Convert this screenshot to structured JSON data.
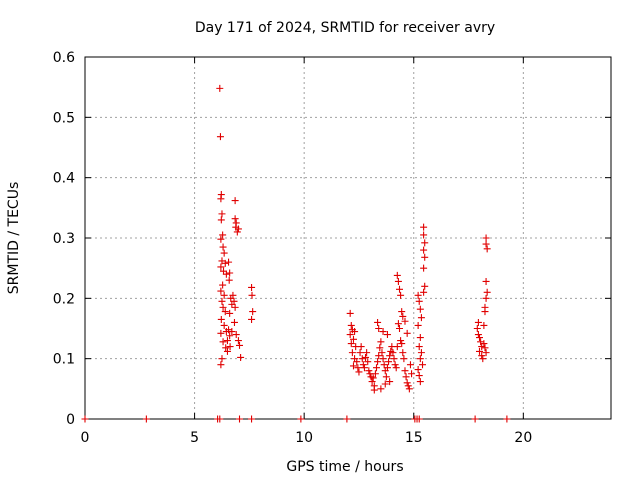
{
  "chart_data": {
    "type": "scatter",
    "title": "Day 171 of 2024, SRMTID for receiver avry",
    "xlabel": "GPS time / hours",
    "ylabel": "SRMTID / TECUs",
    "xlim": [
      0,
      24
    ],
    "ylim": [
      0,
      0.6
    ],
    "xticks": [
      0,
      5,
      10,
      15,
      20
    ],
    "xtick_labels": [
      "0",
      "5",
      "10",
      "15",
      "20"
    ],
    "yticks": [
      0,
      0.1,
      0.2,
      0.3,
      0.4,
      0.5,
      0.6
    ],
    "ytick_labels": [
      "0",
      "0.1",
      "0.2",
      "0.3",
      "0.4",
      "0.5",
      "0.6"
    ],
    "grid": true,
    "marker": "plus",
    "color": "#e00000",
    "series": [
      {
        "name": "SRMTID",
        "points": [
          [
            0.0,
            0.0
          ],
          [
            2.8,
            0.0
          ],
          [
            6.05,
            0.0
          ],
          [
            6.15,
            0.0
          ],
          [
            7.05,
            0.0
          ],
          [
            7.6,
            0.0
          ],
          [
            9.85,
            0.0
          ],
          [
            11.95,
            0.0
          ],
          [
            15.05,
            0.0
          ],
          [
            15.15,
            0.0
          ],
          [
            15.25,
            0.0
          ],
          [
            17.8,
            0.0
          ],
          [
            19.25,
            0.0
          ],
          [
            6.15,
            0.548
          ],
          [
            6.18,
            0.468
          ],
          [
            6.22,
            0.372
          ],
          [
            6.2,
            0.365
          ],
          [
            6.25,
            0.34
          ],
          [
            6.22,
            0.33
          ],
          [
            6.28,
            0.305
          ],
          [
            6.2,
            0.298
          ],
          [
            6.3,
            0.285
          ],
          [
            6.35,
            0.275
          ],
          [
            6.25,
            0.262
          ],
          [
            6.2,
            0.252
          ],
          [
            6.32,
            0.245
          ],
          [
            6.4,
            0.258
          ],
          [
            6.45,
            0.24
          ],
          [
            6.28,
            0.222
          ],
          [
            6.2,
            0.212
          ],
          [
            6.35,
            0.205
          ],
          [
            6.25,
            0.195
          ],
          [
            6.3,
            0.185
          ],
          [
            6.4,
            0.178
          ],
          [
            6.22,
            0.165
          ],
          [
            6.35,
            0.155
          ],
          [
            6.45,
            0.145
          ],
          [
            6.2,
            0.142
          ],
          [
            6.3,
            0.128
          ],
          [
            6.42,
            0.118
          ],
          [
            6.5,
            0.112
          ],
          [
            6.25,
            0.1
          ],
          [
            6.2,
            0.09
          ],
          [
            6.55,
            0.26
          ],
          [
            6.6,
            0.242
          ],
          [
            6.58,
            0.23
          ],
          [
            6.65,
            0.2
          ],
          [
            6.7,
            0.19
          ],
          [
            6.6,
            0.175
          ],
          [
            6.55,
            0.148
          ],
          [
            6.6,
            0.138
          ],
          [
            6.5,
            0.13
          ],
          [
            6.62,
            0.12
          ],
          [
            6.7,
            0.145
          ],
          [
            6.85,
            0.362
          ],
          [
            6.85,
            0.332
          ],
          [
            6.9,
            0.325
          ],
          [
            6.88,
            0.318
          ],
          [
            6.95,
            0.31
          ],
          [
            7.0,
            0.315
          ],
          [
            6.8,
            0.195
          ],
          [
            6.85,
            0.185
          ],
          [
            6.82,
            0.16
          ],
          [
            6.9,
            0.14
          ],
          [
            7.0,
            0.13
          ],
          [
            7.05,
            0.122
          ],
          [
            7.1,
            0.102
          ],
          [
            6.75,
            0.205
          ],
          [
            7.6,
            0.218
          ],
          [
            7.62,
            0.205
          ],
          [
            7.65,
            0.178
          ],
          [
            7.6,
            0.165
          ],
          [
            12.1,
            0.175
          ],
          [
            12.15,
            0.155
          ],
          [
            12.2,
            0.148
          ],
          [
            12.1,
            0.14
          ],
          [
            12.25,
            0.132
          ],
          [
            12.3,
            0.145
          ],
          [
            12.15,
            0.125
          ],
          [
            12.35,
            0.12
          ],
          [
            12.2,
            0.11
          ],
          [
            12.3,
            0.1
          ],
          [
            12.4,
            0.095
          ],
          [
            12.25,
            0.088
          ],
          [
            12.45,
            0.085
          ],
          [
            12.5,
            0.078
          ],
          [
            12.55,
            0.11
          ],
          [
            12.6,
            0.12
          ],
          [
            12.65,
            0.1
          ],
          [
            12.7,
            0.09
          ],
          [
            12.75,
            0.085
          ],
          [
            12.8,
            0.102
          ],
          [
            12.85,
            0.11
          ],
          [
            12.9,
            0.095
          ],
          [
            12.95,
            0.08
          ],
          [
            13.0,
            0.075
          ],
          [
            13.05,
            0.07
          ],
          [
            13.1,
            0.062
          ],
          [
            13.15,
            0.068
          ],
          [
            13.2,
            0.055
          ],
          [
            13.25,
            0.075
          ],
          [
            13.3,
            0.085
          ],
          [
            13.35,
            0.095
          ],
          [
            13.4,
            0.105
          ],
          [
            13.45,
            0.118
          ],
          [
            13.5,
            0.128
          ],
          [
            13.55,
            0.11
          ],
          [
            13.6,
            0.1
          ],
          [
            13.65,
            0.09
          ],
          [
            13.7,
            0.08
          ],
          [
            13.75,
            0.07
          ],
          [
            13.8,
            0.085
          ],
          [
            13.85,
            0.095
          ],
          [
            13.9,
            0.105
          ],
          [
            13.95,
            0.112
          ],
          [
            13.35,
            0.16
          ],
          [
            13.4,
            0.15
          ],
          [
            13.6,
            0.145
          ],
          [
            13.8,
            0.14
          ],
          [
            13.5,
            0.05
          ],
          [
            13.7,
            0.058
          ],
          [
            13.9,
            0.062
          ],
          [
            13.2,
            0.048
          ],
          [
            14.0,
            0.12
          ],
          [
            14.05,
            0.11
          ],
          [
            14.1,
            0.1
          ],
          [
            14.15,
            0.09
          ],
          [
            14.2,
            0.085
          ],
          [
            14.25,
            0.12
          ],
          [
            14.3,
            0.158
          ],
          [
            14.35,
            0.15
          ],
          [
            14.4,
            0.13
          ],
          [
            14.45,
            0.125
          ],
          [
            14.5,
            0.11
          ],
          [
            14.55,
            0.1
          ],
          [
            14.6,
            0.08
          ],
          [
            14.65,
            0.07
          ],
          [
            14.7,
            0.06
          ],
          [
            14.75,
            0.055
          ],
          [
            14.8,
            0.05
          ],
          [
            14.85,
            0.09
          ],
          [
            14.9,
            0.075
          ],
          [
            14.25,
            0.238
          ],
          [
            14.3,
            0.228
          ],
          [
            14.35,
            0.215
          ],
          [
            14.4,
            0.205
          ],
          [
            14.45,
            0.178
          ],
          [
            14.5,
            0.17
          ],
          [
            14.6,
            0.162
          ],
          [
            14.7,
            0.142
          ],
          [
            15.2,
            0.205
          ],
          [
            15.25,
            0.195
          ],
          [
            15.3,
            0.182
          ],
          [
            15.35,
            0.168
          ],
          [
            15.2,
            0.155
          ],
          [
            15.3,
            0.135
          ],
          [
            15.25,
            0.12
          ],
          [
            15.35,
            0.11
          ],
          [
            15.3,
            0.1
          ],
          [
            15.4,
            0.09
          ],
          [
            15.2,
            0.082
          ],
          [
            15.25,
            0.072
          ],
          [
            15.3,
            0.062
          ],
          [
            15.45,
            0.318
          ],
          [
            15.45,
            0.305
          ],
          [
            15.5,
            0.292
          ],
          [
            15.45,
            0.28
          ],
          [
            15.5,
            0.268
          ],
          [
            15.45,
            0.25
          ],
          [
            15.5,
            0.22
          ],
          [
            15.45,
            0.21
          ],
          [
            17.9,
            0.15
          ],
          [
            17.95,
            0.14
          ],
          [
            18.0,
            0.135
          ],
          [
            18.05,
            0.128
          ],
          [
            18.1,
            0.12
          ],
          [
            18.0,
            0.112
          ],
          [
            18.1,
            0.105
          ],
          [
            18.15,
            0.1
          ],
          [
            17.95,
            0.16
          ],
          [
            18.2,
            0.125
          ],
          [
            18.25,
            0.118
          ],
          [
            18.3,
            0.11
          ],
          [
            18.3,
            0.3
          ],
          [
            18.3,
            0.29
          ],
          [
            18.35,
            0.282
          ],
          [
            18.3,
            0.228
          ],
          [
            18.35,
            0.21
          ],
          [
            18.3,
            0.2
          ],
          [
            18.25,
            0.185
          ],
          [
            18.25,
            0.178
          ],
          [
            18.2,
            0.155
          ]
        ]
      }
    ]
  }
}
